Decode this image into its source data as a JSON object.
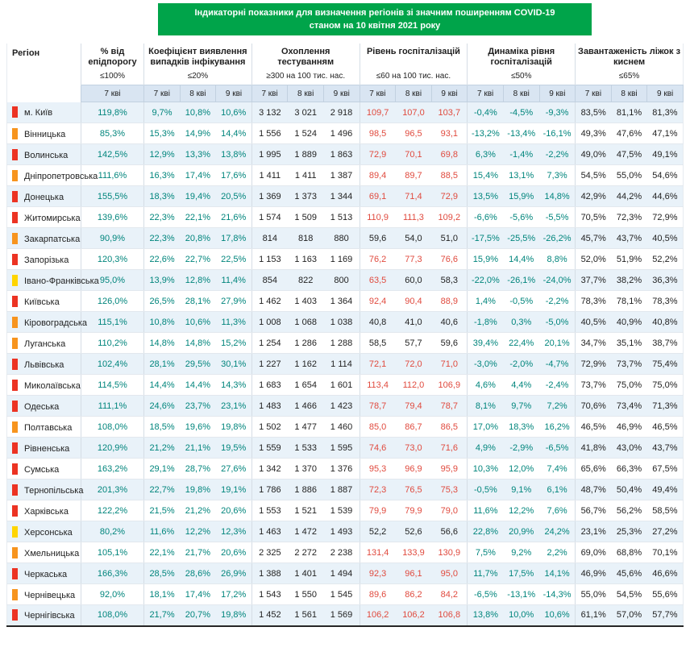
{
  "colors": {
    "title_bg": "#00a44a",
    "value_teal": "#00857c",
    "value_red": "#e04a3e",
    "status": {
      "red": "#ec3323",
      "orange": "#f7941e",
      "yellow": "#ffd500"
    }
  },
  "chart_data": {
    "type": "table",
    "title": "Індикаторні показники для визначення регіонів зі значним поширенням COVID-19",
    "subtitle": "станом на 10 квітня 2021 року",
    "region_header": "Регіон",
    "groups": [
      {
        "key": "pct_epid",
        "label": "% від епідпорогу",
        "threshold": "≤100%",
        "dates": [
          "7 кві"
        ]
      },
      {
        "key": "coef",
        "label": "Коефіцієнт виявлення випадків інфікування",
        "threshold": "≤20%",
        "dates": [
          "7 кві",
          "8 кві",
          "9 кві"
        ]
      },
      {
        "key": "testing",
        "label": "Охоплення тестуванням",
        "threshold": "≥300 на 100 тис. нас.",
        "dates": [
          "7 кві",
          "8 кві",
          "9 кві"
        ]
      },
      {
        "key": "hosp",
        "label": "Рівень госпіталізацій",
        "threshold": "≤60 на 100 тис. нас.",
        "dates": [
          "7 кві",
          "8 кві",
          "9 кві"
        ]
      },
      {
        "key": "dyn",
        "label": "Динаміка рівня госпіталізацій",
        "threshold": "≤50%",
        "dates": [
          "7 кві",
          "8 кві",
          "9 кві"
        ]
      },
      {
        "key": "beds",
        "label": "Завантаженість ліжок з киснем",
        "threshold": "≤65%",
        "dates": [
          "7 кві",
          "8 кві",
          "9 кві"
        ]
      }
    ],
    "hosp_red_threshold": 60,
    "rows": [
      {
        "region": "м. Київ",
        "status": "red",
        "pct_epid": [
          "119,8%"
        ],
        "coef": [
          "9,7%",
          "10,8%",
          "10,6%"
        ],
        "testing": [
          "3 132",
          "3 021",
          "2 918"
        ],
        "hosp": [
          "109,7",
          "107,0",
          "103,7"
        ],
        "dyn": [
          "-0,4%",
          "-4,5%",
          "-9,3%"
        ],
        "beds": [
          "83,5%",
          "81,1%",
          "81,3%"
        ]
      },
      {
        "region": "Вінницька",
        "status": "orange",
        "pct_epid": [
          "85,3%"
        ],
        "coef": [
          "15,3%",
          "14,9%",
          "14,4%"
        ],
        "testing": [
          "1 556",
          "1 524",
          "1 496"
        ],
        "hosp": [
          "98,5",
          "96,5",
          "93,1"
        ],
        "dyn": [
          "-13,2%",
          "-13,4%",
          "-16,1%"
        ],
        "beds": [
          "49,3%",
          "47,6%",
          "47,1%"
        ]
      },
      {
        "region": "Волинська",
        "status": "red",
        "pct_epid": [
          "142,5%"
        ],
        "coef": [
          "12,9%",
          "13,3%",
          "13,8%"
        ],
        "testing": [
          "1 995",
          "1 889",
          "1 863"
        ],
        "hosp": [
          "72,9",
          "70,1",
          "69,8"
        ],
        "dyn": [
          "6,3%",
          "-1,4%",
          "-2,2%"
        ],
        "beds": [
          "49,0%",
          "47,5%",
          "49,1%"
        ]
      },
      {
        "region": "Дніпропетровська",
        "status": "orange",
        "pct_epid": [
          "111,6%"
        ],
        "coef": [
          "16,3%",
          "17,4%",
          "17,6%"
        ],
        "testing": [
          "1 411",
          "1 411",
          "1 387"
        ],
        "hosp": [
          "89,4",
          "89,7",
          "88,5"
        ],
        "dyn": [
          "15,4%",
          "13,1%",
          "7,3%"
        ],
        "beds": [
          "54,5%",
          "55,0%",
          "54,6%"
        ]
      },
      {
        "region": "Донецька",
        "status": "red",
        "pct_epid": [
          "155,5%"
        ],
        "coef": [
          "18,3%",
          "19,4%",
          "20,5%"
        ],
        "testing": [
          "1 369",
          "1 373",
          "1 344"
        ],
        "hosp": [
          "69,1",
          "71,4",
          "72,9"
        ],
        "dyn": [
          "13,5%",
          "15,9%",
          "14,8%"
        ],
        "beds": [
          "42,9%",
          "44,2%",
          "44,6%"
        ]
      },
      {
        "region": "Житомирська",
        "status": "red",
        "pct_epid": [
          "139,6%"
        ],
        "coef": [
          "22,3%",
          "22,1%",
          "21,6%"
        ],
        "testing": [
          "1 574",
          "1 509",
          "1 513"
        ],
        "hosp": [
          "110,9",
          "111,3",
          "109,2"
        ],
        "dyn": [
          "-6,6%",
          "-5,6%",
          "-5,5%"
        ],
        "beds": [
          "70,5%",
          "72,3%",
          "72,9%"
        ]
      },
      {
        "region": "Закарпатська",
        "status": "orange",
        "pct_epid": [
          "90,9%"
        ],
        "coef": [
          "22,3%",
          "20,8%",
          "17,8%"
        ],
        "testing": [
          "814",
          "818",
          "880"
        ],
        "hosp": [
          "59,6",
          "54,0",
          "51,0"
        ],
        "dyn": [
          "-17,5%",
          "-25,5%",
          "-26,2%"
        ],
        "beds": [
          "45,7%",
          "43,7%",
          "40,5%"
        ]
      },
      {
        "region": "Запорізька",
        "status": "red",
        "pct_epid": [
          "120,3%"
        ],
        "coef": [
          "22,6%",
          "22,7%",
          "22,5%"
        ],
        "testing": [
          "1 153",
          "1 163",
          "1 169"
        ],
        "hosp": [
          "76,2",
          "77,3",
          "76,6"
        ],
        "dyn": [
          "15,9%",
          "14,4%",
          "8,8%"
        ],
        "beds": [
          "52,0%",
          "51,9%",
          "52,2%"
        ]
      },
      {
        "region": "Івано-Франківська",
        "status": "yellow",
        "pct_epid": [
          "95,0%"
        ],
        "coef": [
          "13,9%",
          "12,8%",
          "11,4%"
        ],
        "testing": [
          "854",
          "822",
          "800"
        ],
        "hosp": [
          "63,5",
          "60,0",
          "58,3"
        ],
        "dyn": [
          "-22,0%",
          "-26,1%",
          "-24,0%"
        ],
        "beds": [
          "37,7%",
          "38,2%",
          "36,3%"
        ]
      },
      {
        "region": "Київська",
        "status": "red",
        "pct_epid": [
          "126,0%"
        ],
        "coef": [
          "26,5%",
          "28,1%",
          "27,9%"
        ],
        "testing": [
          "1 462",
          "1 403",
          "1 364"
        ],
        "hosp": [
          "92,4",
          "90,4",
          "88,9"
        ],
        "dyn": [
          "1,4%",
          "-0,5%",
          "-2,2%"
        ],
        "beds": [
          "78,3%",
          "78,1%",
          "78,3%"
        ]
      },
      {
        "region": "Кіровоградська",
        "status": "orange",
        "pct_epid": [
          "115,1%"
        ],
        "coef": [
          "10,8%",
          "10,6%",
          "11,3%"
        ],
        "testing": [
          "1 008",
          "1 068",
          "1 038"
        ],
        "hosp": [
          "40,8",
          "41,0",
          "40,6"
        ],
        "dyn": [
          "-1,8%",
          "0,3%",
          "-5,0%"
        ],
        "beds": [
          "40,5%",
          "40,9%",
          "40,8%"
        ]
      },
      {
        "region": "Луганська",
        "status": "orange",
        "pct_epid": [
          "110,2%"
        ],
        "coef": [
          "14,8%",
          "14,8%",
          "15,2%"
        ],
        "testing": [
          "1 254",
          "1 286",
          "1 288"
        ],
        "hosp": [
          "58,5",
          "57,7",
          "59,6"
        ],
        "dyn": [
          "39,4%",
          "22,4%",
          "20,1%"
        ],
        "beds": [
          "34,7%",
          "35,1%",
          "38,7%"
        ]
      },
      {
        "region": "Львівська",
        "status": "red",
        "pct_epid": [
          "102,4%"
        ],
        "coef": [
          "28,1%",
          "29,5%",
          "30,1%"
        ],
        "testing": [
          "1 227",
          "1 162",
          "1 114"
        ],
        "hosp": [
          "72,1",
          "72,0",
          "71,0"
        ],
        "dyn": [
          "-3,0%",
          "-2,0%",
          "-4,7%"
        ],
        "beds": [
          "72,9%",
          "73,7%",
          "75,4%"
        ]
      },
      {
        "region": "Миколаївська",
        "status": "red",
        "pct_epid": [
          "114,5%"
        ],
        "coef": [
          "14,4%",
          "14,4%",
          "14,3%"
        ],
        "testing": [
          "1 683",
          "1 654",
          "1 601"
        ],
        "hosp": [
          "113,4",
          "112,0",
          "106,9"
        ],
        "dyn": [
          "4,6%",
          "4,4%",
          "-2,4%"
        ],
        "beds": [
          "73,7%",
          "75,0%",
          "75,0%"
        ]
      },
      {
        "region": "Одеська",
        "status": "red",
        "pct_epid": [
          "111,1%"
        ],
        "coef": [
          "24,6%",
          "23,7%",
          "23,1%"
        ],
        "testing": [
          "1 483",
          "1 466",
          "1 423"
        ],
        "hosp": [
          "78,7",
          "79,4",
          "78,7"
        ],
        "dyn": [
          "8,1%",
          "9,7%",
          "7,2%"
        ],
        "beds": [
          "70,6%",
          "73,4%",
          "71,3%"
        ]
      },
      {
        "region": "Полтавська",
        "status": "orange",
        "pct_epid": [
          "108,0%"
        ],
        "coef": [
          "18,5%",
          "19,6%",
          "19,8%"
        ],
        "testing": [
          "1 502",
          "1 477",
          "1 460"
        ],
        "hosp": [
          "85,0",
          "86,7",
          "86,5"
        ],
        "dyn": [
          "17,0%",
          "18,3%",
          "16,2%"
        ],
        "beds": [
          "46,5%",
          "46,9%",
          "46,5%"
        ]
      },
      {
        "region": "Рівненська",
        "status": "red",
        "pct_epid": [
          "120,9%"
        ],
        "coef": [
          "21,2%",
          "21,1%",
          "19,5%"
        ],
        "testing": [
          "1 559",
          "1 533",
          "1 595"
        ],
        "hosp": [
          "74,6",
          "73,0",
          "71,6"
        ],
        "dyn": [
          "4,9%",
          "-2,9%",
          "-6,5%"
        ],
        "beds": [
          "41,8%",
          "43,0%",
          "43,7%"
        ]
      },
      {
        "region": "Сумська",
        "status": "red",
        "pct_epid": [
          "163,2%"
        ],
        "coef": [
          "29,1%",
          "28,7%",
          "27,6%"
        ],
        "testing": [
          "1 342",
          "1 370",
          "1 376"
        ],
        "hosp": [
          "95,3",
          "96,9",
          "95,9"
        ],
        "dyn": [
          "10,3%",
          "12,0%",
          "7,4%"
        ],
        "beds": [
          "65,6%",
          "66,3%",
          "67,5%"
        ]
      },
      {
        "region": "Тернопільська",
        "status": "red",
        "pct_epid": [
          "201,3%"
        ],
        "coef": [
          "22,7%",
          "19,8%",
          "19,1%"
        ],
        "testing": [
          "1 786",
          "1 886",
          "1 887"
        ],
        "hosp": [
          "72,3",
          "76,5",
          "75,3"
        ],
        "dyn": [
          "-0,5%",
          "9,1%",
          "6,1%"
        ],
        "beds": [
          "48,7%",
          "50,4%",
          "49,4%"
        ]
      },
      {
        "region": "Харківська",
        "status": "red",
        "pct_epid": [
          "122,2%"
        ],
        "coef": [
          "21,5%",
          "21,2%",
          "20,6%"
        ],
        "testing": [
          "1 553",
          "1 521",
          "1 539"
        ],
        "hosp": [
          "79,9",
          "79,9",
          "79,0"
        ],
        "dyn": [
          "11,6%",
          "12,2%",
          "7,6%"
        ],
        "beds": [
          "56,7%",
          "56,2%",
          "58,5%"
        ]
      },
      {
        "region": "Херсонська",
        "status": "yellow",
        "pct_epid": [
          "80,2%"
        ],
        "coef": [
          "11,6%",
          "12,2%",
          "12,3%"
        ],
        "testing": [
          "1 463",
          "1 472",
          "1 493"
        ],
        "hosp": [
          "52,2",
          "52,6",
          "56,6"
        ],
        "dyn": [
          "22,8%",
          "20,9%",
          "24,2%"
        ],
        "beds": [
          "23,1%",
          "25,3%",
          "27,2%"
        ]
      },
      {
        "region": "Хмельницька",
        "status": "orange",
        "pct_epid": [
          "105,1%"
        ],
        "coef": [
          "22,1%",
          "21,7%",
          "20,6%"
        ],
        "testing": [
          "2 325",
          "2 272",
          "2 238"
        ],
        "hosp": [
          "131,4",
          "133,9",
          "130,9"
        ],
        "dyn": [
          "7,5%",
          "9,2%",
          "2,2%"
        ],
        "beds": [
          "69,0%",
          "68,8%",
          "70,1%"
        ]
      },
      {
        "region": "Черкаська",
        "status": "red",
        "pct_epid": [
          "166,3%"
        ],
        "coef": [
          "28,5%",
          "28,6%",
          "26,9%"
        ],
        "testing": [
          "1 388",
          "1 401",
          "1 494"
        ],
        "hosp": [
          "92,3",
          "96,1",
          "95,0"
        ],
        "dyn": [
          "11,7%",
          "17,5%",
          "14,1%"
        ],
        "beds": [
          "46,9%",
          "45,6%",
          "46,6%"
        ]
      },
      {
        "region": "Чернівецька",
        "status": "orange",
        "pct_epid": [
          "92,0%"
        ],
        "coef": [
          "18,1%",
          "17,4%",
          "17,2%"
        ],
        "testing": [
          "1 543",
          "1 550",
          "1 545"
        ],
        "hosp": [
          "89,6",
          "86,2",
          "84,2"
        ],
        "dyn": [
          "-6,5%",
          "-13,1%",
          "-14,3%"
        ],
        "beds": [
          "55,0%",
          "54,5%",
          "55,6%"
        ]
      },
      {
        "region": "Чернігівська",
        "status": "red",
        "pct_epid": [
          "108,0%"
        ],
        "coef": [
          "21,7%",
          "20,7%",
          "19,8%"
        ],
        "testing": [
          "1 452",
          "1 561",
          "1 569"
        ],
        "hosp": [
          "106,2",
          "106,2",
          "106,8"
        ],
        "dyn": [
          "13,8%",
          "10,0%",
          "10,6%"
        ],
        "beds": [
          "61,1%",
          "57,0%",
          "57,7%"
        ]
      }
    ]
  }
}
